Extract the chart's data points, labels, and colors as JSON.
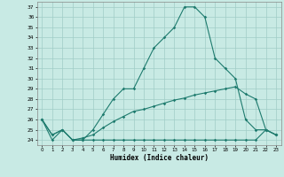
{
  "title": "",
  "xlabel": "Humidex (Indice chaleur)",
  "xlim": [
    -0.5,
    23.5
  ],
  "ylim": [
    23.5,
    37.5
  ],
  "yticks": [
    24,
    25,
    26,
    27,
    28,
    29,
    30,
    31,
    32,
    33,
    34,
    35,
    36,
    37
  ],
  "xticks": [
    0,
    1,
    2,
    3,
    4,
    5,
    6,
    7,
    8,
    9,
    10,
    11,
    12,
    13,
    14,
    15,
    16,
    17,
    18,
    19,
    20,
    21,
    22,
    23
  ],
  "bg_color": "#c8eae4",
  "line_color": "#1e7b6e",
  "grid_color": "#a0cdc7",
  "line1_x": [
    0,
    1,
    2,
    3,
    4,
    5,
    6,
    7,
    8,
    9,
    10,
    11,
    12,
    13,
    14,
    15,
    16,
    17,
    18,
    19,
    20,
    21,
    22,
    23
  ],
  "line1_y": [
    26.0,
    24.0,
    25.0,
    24.0,
    24.0,
    25.0,
    26.5,
    28.0,
    29.0,
    29.0,
    31.0,
    33.0,
    34.0,
    35.0,
    37.0,
    37.0,
    36.0,
    32.0,
    31.0,
    30.0,
    26.0,
    25.0,
    25.0,
    24.5
  ],
  "line2_x": [
    0,
    1,
    2,
    3,
    4,
    5,
    6,
    7,
    8,
    9,
    10,
    11,
    12,
    13,
    14,
    15,
    16,
    17,
    18,
    19,
    20,
    21,
    22,
    23
  ],
  "line2_y": [
    26.0,
    24.5,
    25.0,
    24.0,
    24.2,
    24.5,
    25.2,
    25.8,
    26.3,
    26.8,
    27.0,
    27.3,
    27.6,
    27.9,
    28.1,
    28.4,
    28.6,
    28.8,
    29.0,
    29.2,
    28.5,
    28.0,
    25.0,
    24.5
  ],
  "line3_x": [
    0,
    1,
    2,
    3,
    4,
    5,
    6,
    7,
    8,
    9,
    10,
    11,
    12,
    13,
    14,
    15,
    16,
    17,
    18,
    19,
    20,
    21,
    22,
    23
  ],
  "line3_y": [
    26.0,
    24.5,
    25.0,
    24.0,
    24.0,
    24.0,
    24.0,
    24.0,
    24.0,
    24.0,
    24.0,
    24.0,
    24.0,
    24.0,
    24.0,
    24.0,
    24.0,
    24.0,
    24.0,
    24.0,
    24.0,
    24.0,
    25.0,
    24.5
  ]
}
